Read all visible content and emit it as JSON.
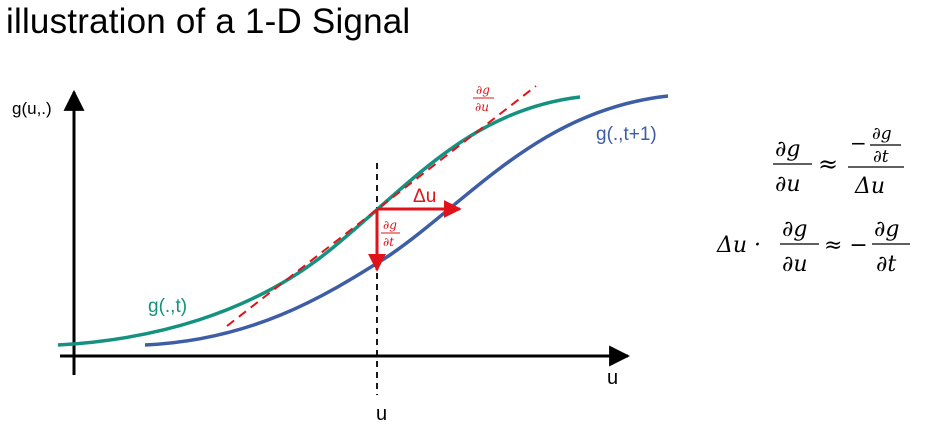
{
  "title": "illustration of a 1-D Signal",
  "colors": {
    "curve_t": "#14917f",
    "curve_t1": "#3d5ea6",
    "accent_red": "#e0131a",
    "tangent": "#e0131a",
    "axis": "#000000"
  },
  "axes": {
    "y_label": "g(u,.)",
    "x_label": "u",
    "marker_label": "u"
  },
  "curves": {
    "t_label": "g(.,t)",
    "t1_label": "g(.,t+1)"
  },
  "annotations": {
    "du_label": "Δu",
    "dg_numer": "∂g",
    "du_denom": "∂u",
    "dt_denom": "∂t"
  },
  "equations": {
    "eq1": {
      "lhs_num": "∂g",
      "lhs_den": "∂u",
      "approx": "≈",
      "rhs_num_minus": "−",
      "rhs_num_top": "∂g",
      "rhs_num_bot": "∂t",
      "rhs_den": "Δu"
    },
    "eq2": {
      "lead": "Δu ·",
      "frac1_num": "∂g",
      "frac1_den": "∂u",
      "approx": "≈ −",
      "frac2_num": "∂g",
      "frac2_den": "∂t"
    }
  }
}
